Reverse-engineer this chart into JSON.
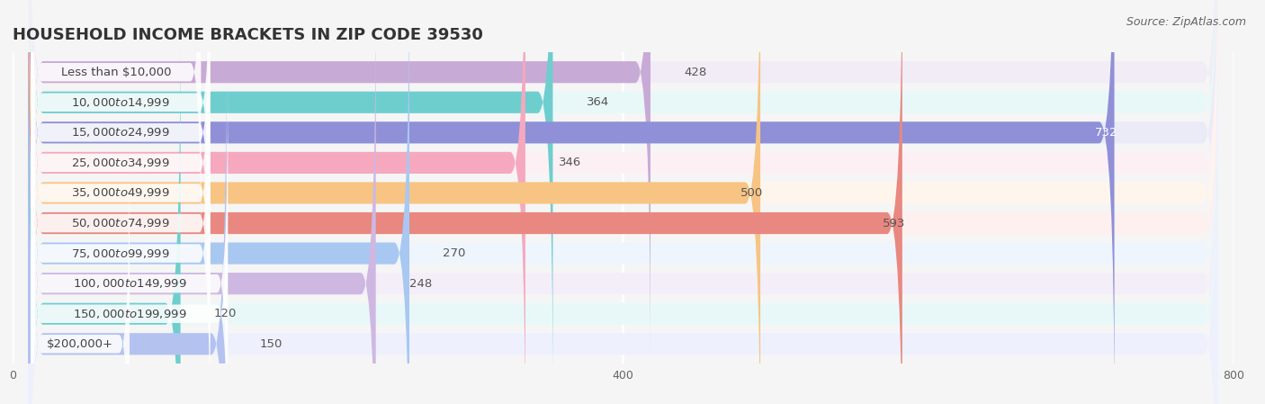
{
  "title": "HOUSEHOLD INCOME BRACKETS IN ZIP CODE 39530",
  "source": "Source: ZipAtlas.com",
  "categories": [
    "Less than $10,000",
    "$10,000 to $14,999",
    "$15,000 to $24,999",
    "$25,000 to $34,999",
    "$35,000 to $49,999",
    "$50,000 to $74,999",
    "$75,000 to $99,999",
    "$100,000 to $149,999",
    "$150,000 to $199,999",
    "$200,000+"
  ],
  "values": [
    428,
    364,
    732,
    346,
    500,
    593,
    270,
    248,
    120,
    150
  ],
  "bar_colors": [
    "#c8aad6",
    "#6ecece",
    "#9090d8",
    "#f5a8be",
    "#f7c484",
    "#e88880",
    "#a8c8f2",
    "#ceb8e2",
    "#6ecece",
    "#b4c2f0"
  ],
  "bar_bg_colors": [
    "#f2ecf7",
    "#e8f8f8",
    "#ebebf7",
    "#fdf0f5",
    "#fef6ec",
    "#fdf0ee",
    "#eef5fd",
    "#f4eef8",
    "#e8f8f8",
    "#eef0fd"
  ],
  "xlim": [
    0,
    800
  ],
  "xticks": [
    0,
    400,
    800
  ],
  "title_fontsize": 13,
  "label_fontsize": 9.5,
  "value_fontsize": 9.5,
  "background_color": "#f5f5f5",
  "bar_height": 0.72,
  "large_threshold": 650,
  "medium_threshold": 480
}
